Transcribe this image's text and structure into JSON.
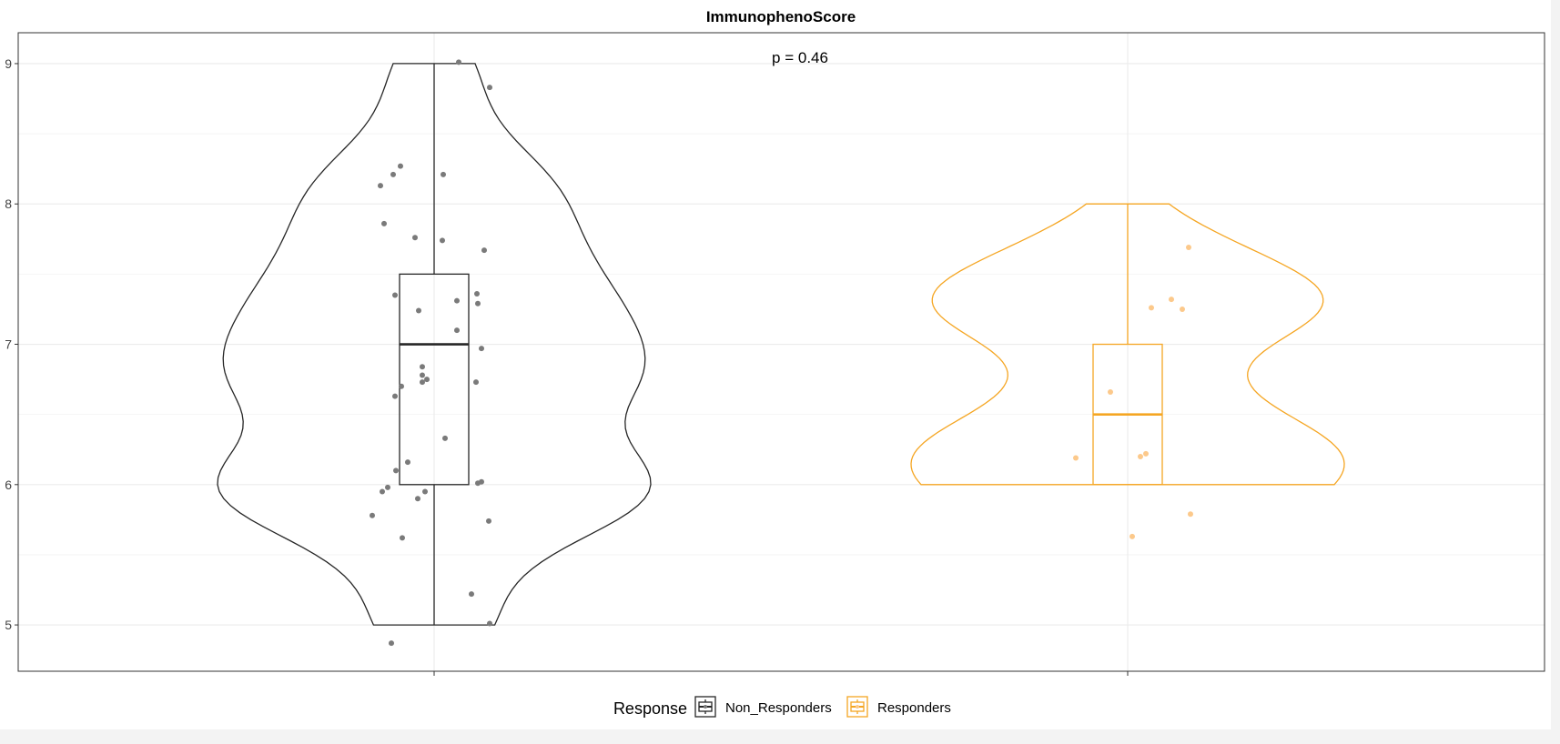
{
  "chart_data": {
    "type": "violin",
    "title": "ImmunophenoScore",
    "annotation": "p = 0.46",
    "xlabel": "",
    "ylabel": "",
    "ylim": [
      4.67,
      9.22
    ],
    "yticks": [
      5,
      6,
      7,
      8,
      9
    ],
    "y_tick_labels": [
      "5",
      "6",
      "7",
      "8",
      "9"
    ],
    "grid": true,
    "legend": {
      "title": "Response",
      "position": "bottom",
      "entries": [
        "Non_Responders",
        "Responders"
      ]
    },
    "series": [
      {
        "name": "Non_Responders",
        "color": "#262626",
        "point_color": "#7a7a7a",
        "box": {
          "min": 5.0,
          "q1": 6.0,
          "median": 7.0,
          "q3": 7.5,
          "max": 9.0
        },
        "violin_range": [
          5.0,
          9.0
        ],
        "points": [
          {
            "y": 9.01,
            "jitter": 0.27
          },
          {
            "y": 8.83,
            "jitter": 0.61
          },
          {
            "y": 8.27,
            "jitter": -0.37
          },
          {
            "y": 8.21,
            "jitter": -0.45
          },
          {
            "y": 8.21,
            "jitter": 0.1
          },
          {
            "y": 8.13,
            "jitter": -0.59
          },
          {
            "y": 7.86,
            "jitter": -0.55
          },
          {
            "y": 7.76,
            "jitter": -0.21
          },
          {
            "y": 7.74,
            "jitter": 0.09
          },
          {
            "y": 7.67,
            "jitter": 0.55
          },
          {
            "y": 7.36,
            "jitter": 0.47
          },
          {
            "y": 7.35,
            "jitter": -0.43
          },
          {
            "y": 7.31,
            "jitter": 0.25
          },
          {
            "y": 7.29,
            "jitter": 0.48
          },
          {
            "y": 7.24,
            "jitter": -0.17
          },
          {
            "y": 7.1,
            "jitter": 0.25
          },
          {
            "y": 6.97,
            "jitter": 0.52
          },
          {
            "y": 6.84,
            "jitter": -0.13
          },
          {
            "y": 6.78,
            "jitter": -0.13
          },
          {
            "y": 6.75,
            "jitter": -0.08
          },
          {
            "y": 6.73,
            "jitter": -0.13
          },
          {
            "y": 6.73,
            "jitter": 0.46
          },
          {
            "y": 6.7,
            "jitter": -0.36
          },
          {
            "y": 6.63,
            "jitter": -0.43
          },
          {
            "y": 6.33,
            "jitter": 0.12
          },
          {
            "y": 6.16,
            "jitter": -0.29
          },
          {
            "y": 6.1,
            "jitter": -0.42
          },
          {
            "y": 6.02,
            "jitter": 0.52
          },
          {
            "y": 6.01,
            "jitter": 0.48
          },
          {
            "y": 5.98,
            "jitter": -0.51
          },
          {
            "y": 5.95,
            "jitter": -0.57
          },
          {
            "y": 5.95,
            "jitter": -0.1
          },
          {
            "y": 5.9,
            "jitter": -0.18
          },
          {
            "y": 5.78,
            "jitter": -0.68
          },
          {
            "y": 5.74,
            "jitter": 0.6
          },
          {
            "y": 5.62,
            "jitter": -0.35
          },
          {
            "y": 5.22,
            "jitter": 0.41
          },
          {
            "y": 5.01,
            "jitter": 0.61
          },
          {
            "y": 4.87,
            "jitter": -0.47
          }
        ]
      },
      {
        "name": "Responders",
        "color": "#f5a623",
        "point_color": "#fcc98b",
        "box": {
          "min": 6.0,
          "q1": 6.0,
          "median": 6.5,
          "q3": 7.0,
          "max": 8.0
        },
        "violin_range": [
          6.0,
          8.0
        ],
        "points": [
          {
            "y": 7.69,
            "jitter": 0.67
          },
          {
            "y": 7.32,
            "jitter": 0.48
          },
          {
            "y": 7.26,
            "jitter": 0.26
          },
          {
            "y": 7.25,
            "jitter": 0.6
          },
          {
            "y": 6.66,
            "jitter": -0.19
          },
          {
            "y": 6.22,
            "jitter": 0.2
          },
          {
            "y": 6.2,
            "jitter": 0.14
          },
          {
            "y": 6.19,
            "jitter": -0.57
          },
          {
            "y": 5.79,
            "jitter": 0.69
          },
          {
            "y": 5.63,
            "jitter": 0.05
          }
        ]
      }
    ]
  }
}
